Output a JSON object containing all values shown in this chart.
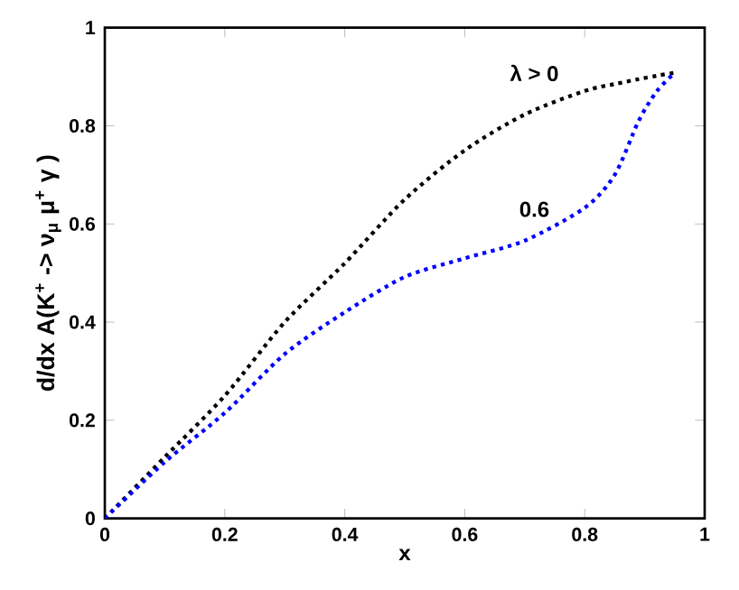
{
  "chart_data": {
    "type": "line",
    "xlabel": "x",
    "ylabel": "d/dx A(K$^{+}$ -> ν$_{μ}$ μ$^{+}$ γ )",
    "xlim": [
      0,
      1
    ],
    "ylim": [
      0,
      1
    ],
    "xticks": [
      0,
      0.2,
      0.4,
      0.6,
      0.8,
      1
    ],
    "yticks": [
      0,
      0.2,
      0.4,
      0.6,
      0.8,
      1
    ],
    "x": [
      0,
      0.1,
      0.2,
      0.3,
      0.4,
      0.5,
      0.6,
      0.7,
      0.8,
      0.85,
      0.89,
      0.92,
      0.95
    ],
    "line_style": "dotted",
    "marker": "none",
    "grid": false,
    "legend": false,
    "series": [
      {
        "name": "λ > 0",
        "color": "#000000",
        "values": [
          0,
          0.125,
          0.25,
          0.4,
          0.52,
          0.65,
          0.75,
          0.823,
          0.871,
          0.885,
          0.895,
          0.902,
          0.908
        ]
      },
      {
        "name": "0.6",
        "color": "#0000ff",
        "values": [
          0,
          0.115,
          0.215,
          0.335,
          0.42,
          0.492,
          0.53,
          0.566,
          0.633,
          0.7,
          0.81,
          0.87,
          0.908
        ]
      }
    ]
  }
}
